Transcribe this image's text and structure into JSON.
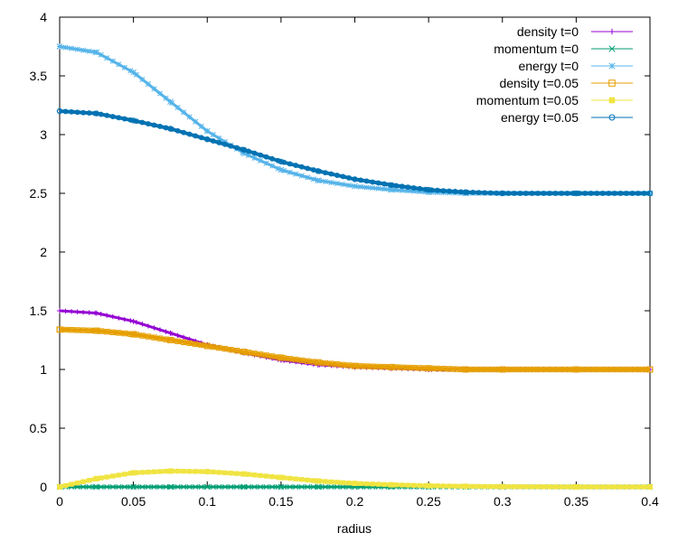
{
  "chart_data": {
    "type": "line",
    "title": "",
    "xlabel": "radius",
    "ylabel": "",
    "xlim": [
      0,
      0.4
    ],
    "ylim": [
      0,
      4
    ],
    "grid": false,
    "legend_position": "top-right",
    "x_ticks": [
      "0",
      "0.05",
      "0.1",
      "0.15",
      "0.2",
      "0.25",
      "0.3",
      "0.35",
      "0.4"
    ],
    "y_ticks": [
      "0",
      "0.5",
      "1",
      "1.5",
      "2",
      "2.5",
      "3",
      "3.5",
      "4"
    ],
    "x": [
      0,
      0.025,
      0.05,
      0.075,
      0.1,
      0.125,
      0.15,
      0.175,
      0.2,
      0.225,
      0.25,
      0.275,
      0.3,
      0.35,
      0.4
    ],
    "series": [
      {
        "name": "density t=0",
        "color": "#9400d3",
        "marker": "plus",
        "values": [
          1.5,
          1.48,
          1.41,
          1.31,
          1.21,
          1.14,
          1.08,
          1.04,
          1.02,
          1.01,
          1.0,
          1.0,
          1.0,
          1.0,
          1.0
        ]
      },
      {
        "name": "momentum t=0",
        "color": "#009e73",
        "marker": "cross",
        "values": [
          0,
          0,
          0,
          0,
          0,
          0,
          0,
          0,
          0,
          0,
          0,
          0,
          0,
          0,
          0
        ]
      },
      {
        "name": "energy t=0",
        "color": "#56b4e9",
        "marker": "star",
        "values": [
          3.75,
          3.7,
          3.53,
          3.28,
          3.03,
          2.84,
          2.7,
          2.61,
          2.56,
          2.53,
          2.51,
          2.5,
          2.5,
          2.5,
          2.5
        ]
      },
      {
        "name": "density t=0.05",
        "color": "#e69f00",
        "marker": "open-square",
        "values": [
          1.34,
          1.33,
          1.3,
          1.25,
          1.2,
          1.15,
          1.1,
          1.06,
          1.03,
          1.02,
          1.01,
          1.0,
          1.0,
          1.0,
          1.0
        ]
      },
      {
        "name": "momentum t=0.05",
        "color": "#f0e442",
        "marker": "filled-square",
        "values": [
          0.0,
          0.07,
          0.12,
          0.135,
          0.13,
          0.11,
          0.08,
          0.05,
          0.03,
          0.018,
          0.01,
          0.005,
          0.002,
          0.0,
          0.0
        ]
      },
      {
        "name": "energy t=0.05",
        "color": "#0072b2",
        "marker": "open-circle",
        "values": [
          3.2,
          3.18,
          3.12,
          3.05,
          2.96,
          2.87,
          2.77,
          2.69,
          2.62,
          2.57,
          2.53,
          2.51,
          2.5,
          2.5,
          2.5
        ]
      }
    ]
  }
}
